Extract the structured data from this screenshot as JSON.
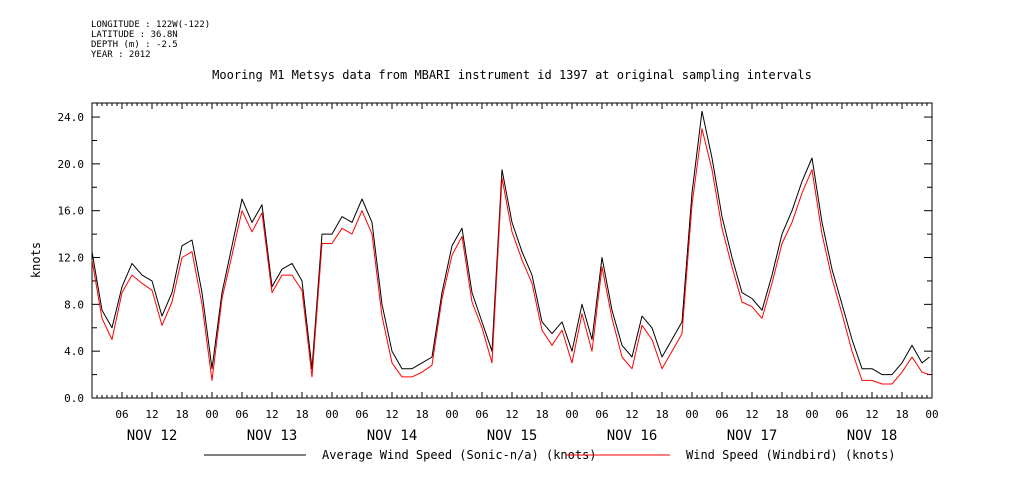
{
  "header": {
    "longitude": "LONGITUDE : 122W(-122)",
    "latitude": "LATITUDE : 36.8N",
    "depth": "DEPTH (m) : -2.5",
    "year": "YEAR : 2012"
  },
  "chart_data": {
    "type": "line",
    "title": "Mooring M1 Metsys data from MBARI instrument id 1397 at original sampling intervals",
    "ylabel": "knots",
    "xlabel": "",
    "ylim": [
      0,
      25.2
    ],
    "yticks": [
      "0.0",
      "4.0",
      "8.0",
      "12.0",
      "16.0",
      "20.0",
      "24.0"
    ],
    "xlim_hours": [
      0,
      168
    ],
    "hour_ticks": [
      "06",
      "12",
      "18",
      "00",
      "06",
      "12",
      "18",
      "00",
      "06",
      "12",
      "18",
      "00",
      "06",
      "12",
      "18",
      "00",
      "06",
      "12",
      "18",
      "00",
      "06",
      "12",
      "18",
      "00",
      "06",
      "12",
      "18",
      "00"
    ],
    "day_labels": [
      "NOV 12",
      "NOV 13",
      "NOV 14",
      "NOV 15",
      "NOV 16",
      "NOV 17",
      "NOV 18"
    ],
    "legend_placement": "bottom",
    "colors": {
      "series1": "#000000",
      "series2": "#ff0000"
    },
    "x_hours": [
      0,
      2,
      4,
      6,
      8,
      10,
      12,
      14,
      16,
      18,
      20,
      22,
      24,
      26,
      28,
      30,
      32,
      34,
      36,
      38,
      40,
      42,
      44,
      46,
      48,
      50,
      52,
      54,
      56,
      58,
      60,
      62,
      64,
      66,
      68,
      70,
      72,
      74,
      76,
      78,
      80,
      82,
      84,
      86,
      88,
      90,
      92,
      94,
      96,
      98,
      100,
      102,
      104,
      106,
      108,
      110,
      112,
      114,
      116,
      118,
      120,
      122,
      124,
      126,
      128,
      130,
      132,
      134,
      136,
      138,
      140,
      142,
      144,
      146,
      148,
      150,
      152,
      154,
      156,
      158,
      160,
      162,
      164,
      166,
      167.5
    ],
    "series": [
      {
        "name": "Average Wind Speed (Sonic-n/a) (knots)",
        "values": [
          12.5,
          7.5,
          6.0,
          9.5,
          11.5,
          10.5,
          10.0,
          7.0,
          9.0,
          13.0,
          13.5,
          9.0,
          2.5,
          9.0,
          13.0,
          17.0,
          15.0,
          16.5,
          9.5,
          11.0,
          11.5,
          10.0,
          2.5,
          14.0,
          14.0,
          15.5,
          15.0,
          17.0,
          15.0,
          8.0,
          4.0,
          2.5,
          2.5,
          3.0,
          3.5,
          9.0,
          13.0,
          14.5,
          9.0,
          6.5,
          4.0,
          19.5,
          15.0,
          12.5,
          10.5,
          6.5,
          5.5,
          6.5,
          4.0,
          8.0,
          5.0,
          12.0,
          7.5,
          4.5,
          3.5,
          7.0,
          6.0,
          3.5,
          5.0,
          6.5,
          17.5,
          24.5,
          20.5,
          15.5,
          12.0,
          9.0,
          8.5,
          7.5,
          10.5,
          14.0,
          16.0,
          18.5,
          20.5,
          15.0,
          11.0,
          8.0,
          5.0,
          2.5,
          2.5,
          2.0,
          2.0,
          3.0,
          4.5,
          3.0,
          3.5
        ]
      },
      {
        "name": "Wind Speed (Windbird) (knots)",
        "values": [
          11.8,
          6.8,
          5.0,
          9.0,
          10.5,
          9.8,
          9.2,
          6.2,
          8.2,
          12.0,
          12.5,
          8.0,
          1.5,
          8.5,
          12.2,
          16.0,
          14.2,
          15.8,
          9.0,
          10.5,
          10.5,
          9.2,
          1.8,
          13.2,
          13.2,
          14.5,
          14.0,
          16.0,
          14.0,
          7.0,
          3.0,
          1.8,
          1.8,
          2.2,
          2.8,
          8.5,
          12.2,
          13.8,
          8.2,
          6.0,
          3.0,
          18.8,
          14.2,
          11.8,
          9.8,
          5.8,
          4.5,
          5.8,
          3.0,
          7.2,
          4.0,
          11.2,
          6.8,
          3.5,
          2.5,
          6.2,
          5.0,
          2.5,
          4.0,
          5.5,
          16.5,
          23.0,
          19.5,
          14.5,
          11.2,
          8.2,
          7.8,
          6.8,
          9.8,
          13.2,
          15.0,
          17.5,
          19.5,
          14.0,
          10.2,
          7.2,
          4.0,
          1.5,
          1.5,
          1.2,
          1.2,
          2.2,
          3.5,
          2.2,
          2.0
        ]
      }
    ]
  }
}
